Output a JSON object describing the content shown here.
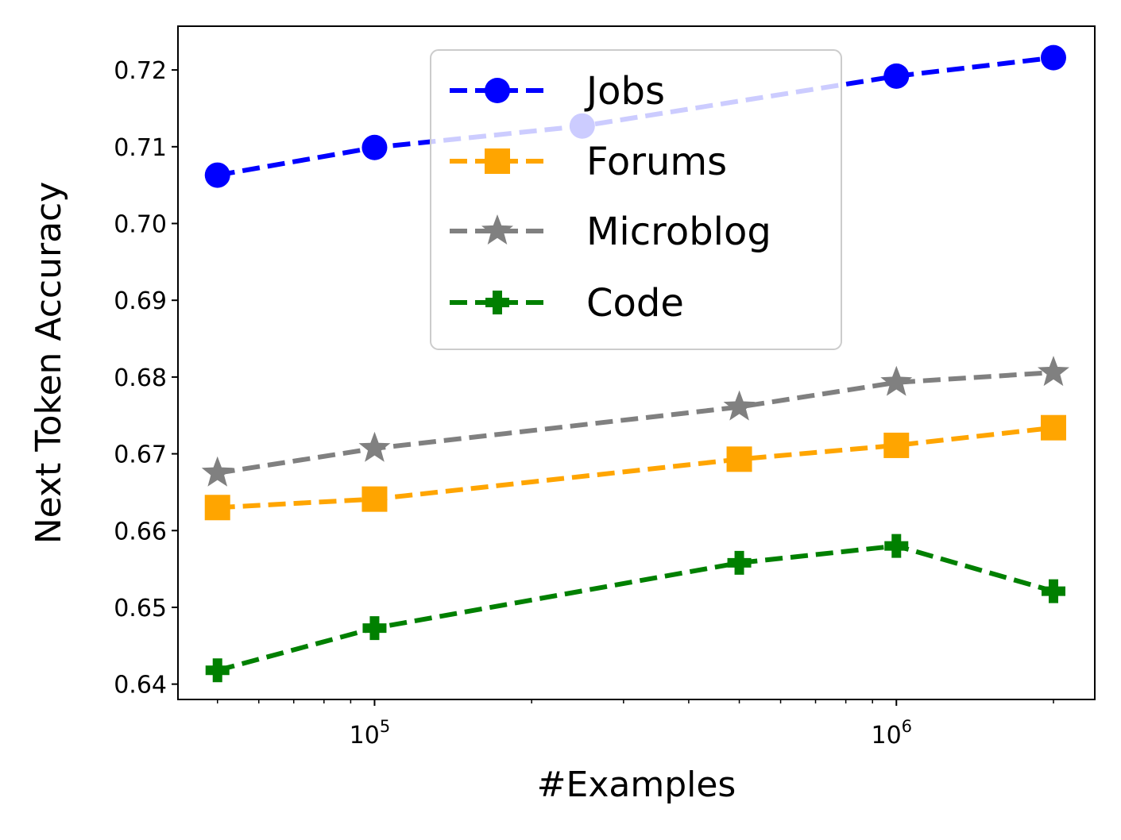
{
  "chart_data": {
    "type": "line",
    "xlabel": "#Examples",
    "ylabel": "Next Token Accuracy",
    "x_scale": "log",
    "xlim": [
      42000,
      2400000
    ],
    "ylim": [
      0.638,
      0.7257
    ],
    "yticks": [
      "0.64",
      "0.65",
      "0.66",
      "0.67",
      "0.68",
      "0.69",
      "0.70",
      "0.71",
      "0.72"
    ],
    "xticks": [
      {
        "base": "10",
        "exp": "5",
        "value": 100000
      },
      {
        "base": "10",
        "exp": "6",
        "value": 1000000
      }
    ],
    "grid": false,
    "legend_position": "top-center",
    "series": [
      {
        "name": "Jobs",
        "color": "#0000ff",
        "marker": "circle",
        "x": [
          50000,
          100000,
          250000,
          1000000,
          2000000
        ],
        "y": [
          0.7063,
          0.7099,
          0.7127,
          0.7192,
          0.7216
        ]
      },
      {
        "name": "Forums",
        "color": "#ffa500",
        "marker": "square",
        "x": [
          50000,
          100000,
          500000,
          1000000,
          2000000
        ],
        "y": [
          0.663,
          0.6641,
          0.6693,
          0.6711,
          0.6734
        ]
      },
      {
        "name": "Microblog",
        "color": "#808080",
        "marker": "star",
        "x": [
          50000,
          100000,
          500000,
          1000000,
          2000000
        ],
        "y": [
          0.6675,
          0.6707,
          0.6761,
          0.6793,
          0.6806
        ]
      },
      {
        "name": "Code",
        "color": "#008000",
        "marker": "plus",
        "x": [
          50000,
          100000,
          500000,
          1000000,
          2000000
        ],
        "y": [
          0.6418,
          0.6473,
          0.6558,
          0.658,
          0.6521
        ]
      }
    ]
  }
}
